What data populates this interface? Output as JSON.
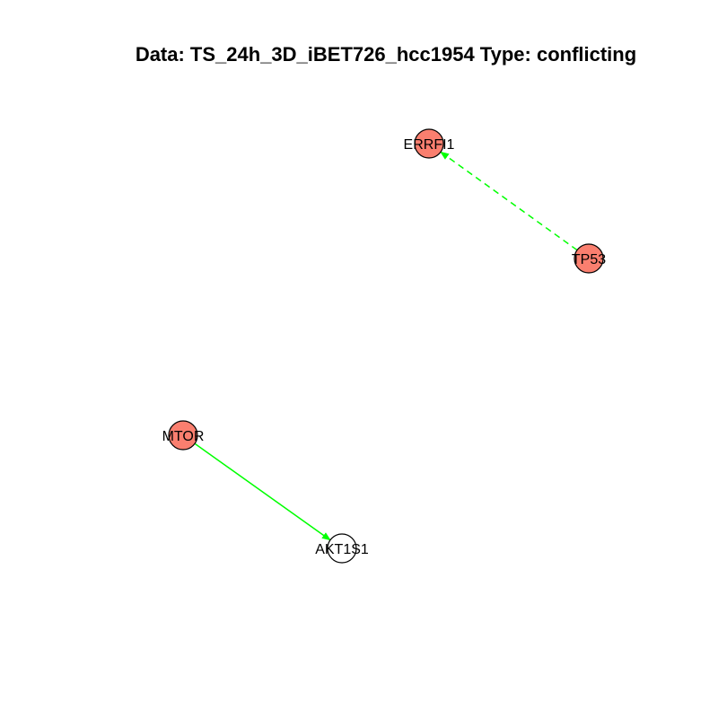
{
  "title": "Data: TS_24h_3D_iBET726_hcc1954 Type: conflicting",
  "colors": {
    "node_highlight": "#fa7f6f",
    "node_plain": "#ffffff",
    "node_border": "#000000",
    "edge": "#00ff00"
  },
  "nodes": [
    {
      "id": "ERRFI1",
      "label": "ERRFI1",
      "fill": "#fa7f6f"
    },
    {
      "id": "TP53",
      "label": "TP53",
      "fill": "#fa7f6f"
    },
    {
      "id": "MTOR",
      "label": "MTOR",
      "fill": "#fa7f6f"
    },
    {
      "id": "AKT1S1",
      "label": "AKT1S1",
      "fill": "#ffffff"
    }
  ],
  "edges": [
    {
      "from": "TP53",
      "to": "ERRFI1",
      "style": "dashed"
    },
    {
      "from": "MTOR",
      "to": "AKT1S1",
      "style": "solid"
    }
  ]
}
